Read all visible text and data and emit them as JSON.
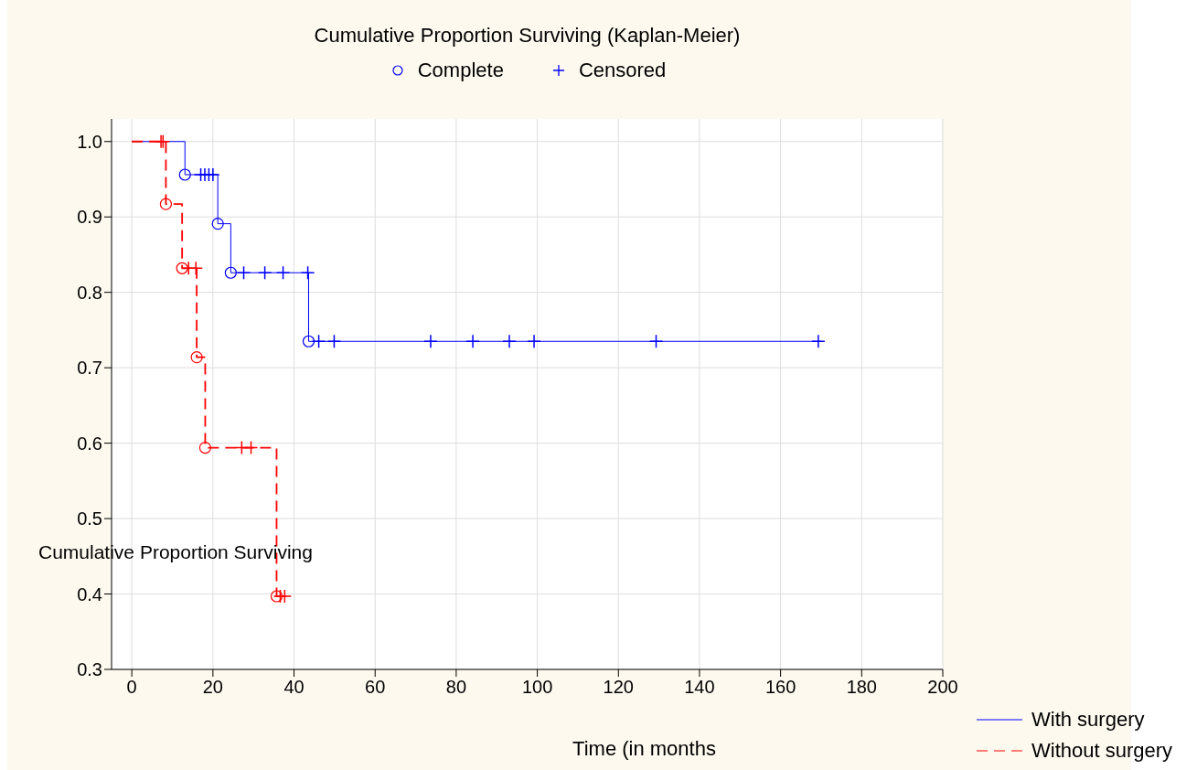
{
  "chart_data": {
    "type": "step",
    "title": "Cumulative Proportion Surviving (Kaplan-Meier)",
    "xlabel": "Time (in  months",
    "ylabel": "Cumulative Proportion Surviving",
    "xlim": [
      -5,
      200
    ],
    "xticks": [
      0,
      20,
      40,
      60,
      80,
      100,
      120,
      140,
      160,
      180,
      200
    ],
    "ylim": [
      0.3,
      1.03
    ],
    "yticks": [
      0.3,
      0.4,
      0.5,
      0.6,
      0.7,
      0.8,
      0.9,
      {
        "value": 1.0,
        "label": "1.0"
      }
    ],
    "grid": true,
    "legend": "bottom right",
    "series": [
      {
        "name": "With surgery",
        "color": "#0000ff",
        "line_style": "solid",
        "marker": "none",
        "x": [
          0,
          13.1,
          21.2,
          24.4,
          43.6,
          170
        ],
        "values": [
          1.0,
          0.956,
          0.891,
          0.826,
          0.735,
          0.735
        ]
      },
      {
        "name": "Without surgery",
        "color": "#ff0000",
        "line_style": "dashed",
        "marker": "none",
        "x": [
          0,
          8.4,
          12.4,
          16.0,
          18.1,
          35.7,
          37.7
        ],
        "values": [
          1.0,
          0.917,
          0.832,
          0.714,
          0.594,
          0.397,
          0.397
        ]
      },
      {
        "name": "Complete",
        "type": "scatter",
        "color": "#0000ff",
        "marker": "circle",
        "x": [
          13.1,
          21.2,
          24.4,
          43.6
        ],
        "values": [
          0.956,
          0.891,
          0.826,
          0.735
        ]
      },
      {
        "name": "Censored",
        "type": "scatter",
        "color": "#0000ff",
        "marker": "cross",
        "x": [
          17,
          18,
          19,
          20,
          27.6,
          32.8,
          37.3,
          43.4,
          46.1,
          49.9,
          73.7,
          84.1,
          93.1,
          99.2,
          129.3,
          169.3
        ],
        "values": [
          0.956,
          0.956,
          0.956,
          0.956,
          0.826,
          0.826,
          0.826,
          0.826,
          0.735,
          0.735,
          0.735,
          0.735,
          0.735,
          0.735,
          0.735,
          0.735
        ]
      },
      {
        "type": "scatter",
        "color": "#ff0000",
        "marker": "circle",
        "x": [
          8.4,
          12.4,
          16.0,
          18.1,
          35.7
        ],
        "values": [
          0.917,
          0.832,
          0.714,
          0.594,
          0.397
        ]
      },
      {
        "type": "scatter",
        "color": "#ff0000",
        "marker": "cross",
        "x": [
          7.2,
          7.7,
          14.0,
          15.8,
          27.1,
          29.4,
          36.6,
          37.7
        ],
        "values": [
          1.0,
          1.0,
          0.832,
          0.832,
          0.594,
          0.594,
          0.397,
          0.397
        ]
      }
    ]
  }
}
